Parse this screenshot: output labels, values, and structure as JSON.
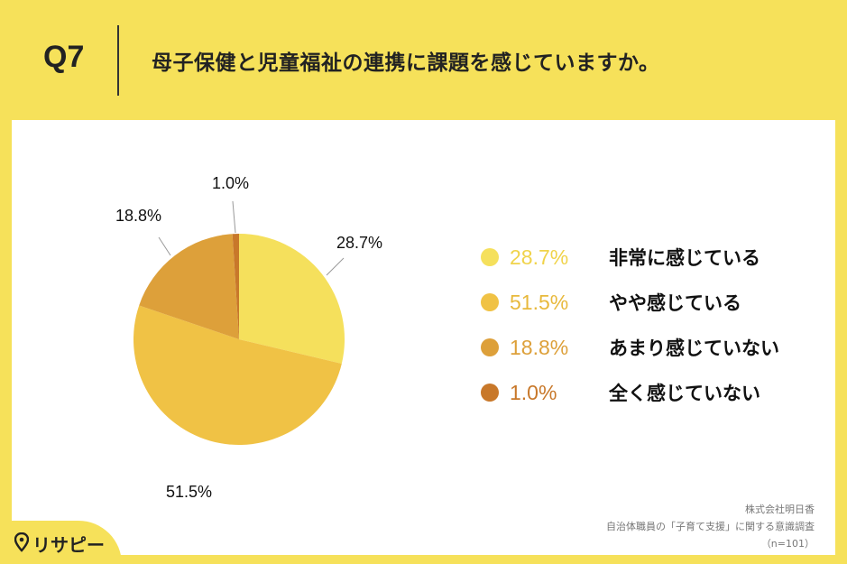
{
  "header": {
    "q_label": "Q7",
    "question": "母子保健と児童福祉の連携に課題を感じていますか。"
  },
  "chart_data": {
    "type": "pie",
    "start_angle_deg": 0,
    "direction": "clockwise",
    "slices": [
      {
        "label": "非常に感じている",
        "value": 28.7,
        "value_text": "28.7%",
        "color": "#f5e05c"
      },
      {
        "label": "やや感じている",
        "value": 51.5,
        "value_text": "51.5%",
        "color": "#f0c245"
      },
      {
        "label": "あまり感じていない",
        "value": 18.8,
        "value_text": "18.8%",
        "color": "#dda03a"
      },
      {
        "label": "全く感じていない",
        "value": 1.0,
        "value_text": "1.0%",
        "color": "#c8782a"
      }
    ],
    "legend_placement": "right"
  },
  "legend_pct_colors": [
    "#f0d34a",
    "#e8b93c",
    "#dda03a",
    "#c8782a"
  ],
  "footer": {
    "company": "株式会社明日香",
    "survey": "自治体職員の「子育て支援」に関する意識調査",
    "n": "（n=101）"
  },
  "logo": {
    "text": "リサピー",
    "icon": "location-pin-icon"
  }
}
